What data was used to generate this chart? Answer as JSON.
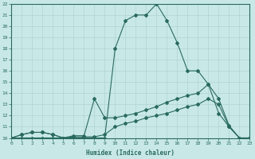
{
  "xlabel": "Humidex (Indice chaleur)",
  "bg_color": "#c8e8e8",
  "line_color": "#2a6a60",
  "grid_color": "#a8d0cc",
  "xmin": 0,
  "xmax": 23,
  "ymin": 10,
  "ymax": 22,
  "line_main_x": [
    0,
    1,
    2,
    3,
    4,
    5,
    6,
    7,
    8,
    9,
    10,
    11,
    12,
    13,
    14,
    15,
    16,
    17,
    18,
    19,
    20,
    21,
    22,
    23
  ],
  "line_main_y": [
    10,
    10,
    10,
    10,
    10,
    10,
    10,
    10,
    10,
    10,
    18,
    20.5,
    21,
    21,
    22,
    20.5,
    18.5,
    16,
    16,
    14.8,
    12.2,
    11,
    10,
    10
  ],
  "line_upper_x": [
    0,
    1,
    2,
    3,
    4,
    5,
    6,
    7,
    8,
    9,
    10,
    11,
    12,
    13,
    14,
    15,
    16,
    17,
    18,
    19,
    20,
    21,
    22,
    23
  ],
  "line_upper_y": [
    10,
    10.3,
    10.5,
    10.5,
    10.3,
    10.0,
    10.2,
    10.2,
    13.5,
    11.8,
    11.8,
    12.0,
    12.2,
    12.5,
    12.8,
    13.2,
    13.5,
    13.8,
    14.0,
    14.8,
    13.5,
    11.1,
    10.0,
    10.0
  ],
  "line_lower_x": [
    0,
    1,
    2,
    3,
    4,
    5,
    6,
    7,
    8,
    9,
    10,
    11,
    12,
    13,
    14,
    15,
    16,
    17,
    18,
    19,
    20,
    21,
    22,
    23
  ],
  "line_lower_y": [
    10,
    10.3,
    10.5,
    10.5,
    10.3,
    10.0,
    10.1,
    10.1,
    10.1,
    10.3,
    11.0,
    11.3,
    11.5,
    11.8,
    12.0,
    12.2,
    12.5,
    12.8,
    13.0,
    13.5,
    13.0,
    11.0,
    10.0,
    10.0
  ]
}
